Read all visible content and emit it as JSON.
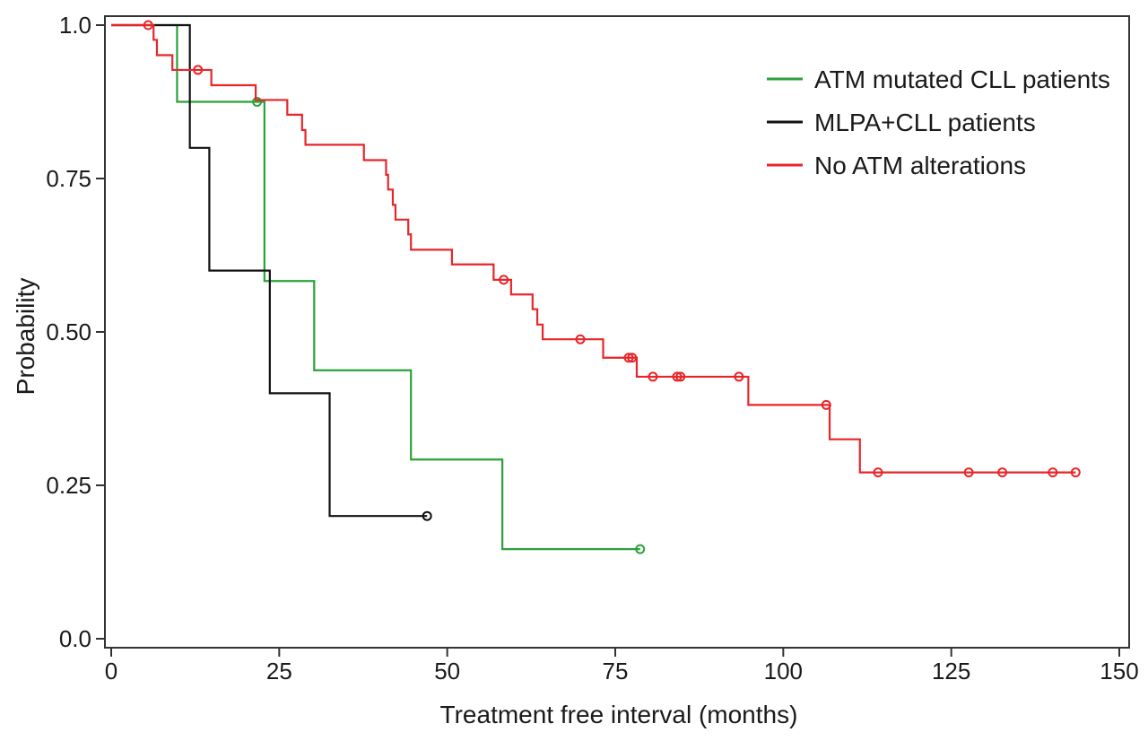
{
  "chart_data": {
    "type": "line",
    "subtype": "kaplan-meier",
    "title": "",
    "xlabel": "Treatment free interval (months)",
    "ylabel": "Probability",
    "xlim": [
      0,
      150
    ],
    "ylim": [
      0,
      1
    ],
    "xticks": [
      0,
      25,
      50,
      75,
      100,
      125,
      150
    ],
    "yticks": [
      0,
      0.25,
      0.5,
      0.75,
      1.0
    ],
    "xtick_labels": [
      "0",
      "25",
      "50",
      "75",
      "100",
      "125",
      "150"
    ],
    "ytick_labels": [
      "0.0",
      "0.25",
      "0.50",
      "0.75",
      "1.0"
    ],
    "grid": false,
    "legend_position": "top-right",
    "series": [
      {
        "name": "ATM mutated CLL patients",
        "color": "#2aa23a",
        "steps": [
          [
            0,
            1.0
          ],
          [
            9.8,
            0.875
          ],
          [
            22.8,
            0.583
          ],
          [
            30.2,
            0.4375
          ],
          [
            44.6,
            0.292
          ],
          [
            58.2,
            0.146
          ]
        ],
        "end": 78.7,
        "censored": [
          [
            21.7,
            0.875
          ],
          [
            78.7,
            0.146
          ]
        ]
      },
      {
        "name": "MLPA+CLL patients",
        "color": "#111111",
        "steps": [
          [
            0,
            1.0
          ],
          [
            11.7,
            0.8
          ],
          [
            14.6,
            0.6
          ],
          [
            23.6,
            0.4
          ],
          [
            32.5,
            0.2
          ]
        ],
        "end": 47.0,
        "censored": [
          [
            47.0,
            0.2
          ]
        ]
      },
      {
        "name": "No ATM alterations",
        "color": "#e8262a",
        "steps": [
          [
            0,
            1.0
          ],
          [
            6.3,
            0.976
          ],
          [
            6.8,
            0.951
          ],
          [
            9.1,
            0.927
          ],
          [
            14.9,
            0.902
          ],
          [
            21.5,
            0.878
          ],
          [
            24.6,
            0.878
          ],
          [
            26.2,
            0.854
          ],
          [
            28.4,
            0.829
          ],
          [
            28.9,
            0.805
          ],
          [
            37.6,
            0.78
          ],
          [
            40.9,
            0.756
          ],
          [
            41.2,
            0.732
          ],
          [
            41.9,
            0.707
          ],
          [
            42.3,
            0.683
          ],
          [
            44.2,
            0.659
          ],
          [
            44.6,
            0.634
          ],
          [
            50.7,
            0.61
          ],
          [
            56.9,
            0.585
          ],
          [
            59.5,
            0.561
          ],
          [
            62.7,
            0.537
          ],
          [
            63.4,
            0.512
          ],
          [
            64.2,
            0.488
          ],
          [
            73.2,
            0.458
          ],
          [
            78.2,
            0.427
          ],
          [
            94.8,
            0.381
          ],
          [
            106.9,
            0.325
          ],
          [
            111.4,
            0.271
          ]
        ],
        "end": 143.5,
        "censored": [
          [
            5.5,
            1.0
          ],
          [
            12.9,
            0.927
          ],
          [
            58.4,
            0.585
          ],
          [
            69.8,
            0.488
          ],
          [
            77.0,
            0.458
          ],
          [
            77.5,
            0.458
          ],
          [
            80.6,
            0.427
          ],
          [
            84.2,
            0.427
          ],
          [
            84.7,
            0.427
          ],
          [
            93.4,
            0.427
          ],
          [
            106.4,
            0.381
          ],
          [
            114.1,
            0.271
          ],
          [
            127.6,
            0.271
          ],
          [
            132.6,
            0.271
          ],
          [
            140.1,
            0.271
          ],
          [
            143.5,
            0.271
          ]
        ]
      }
    ]
  }
}
